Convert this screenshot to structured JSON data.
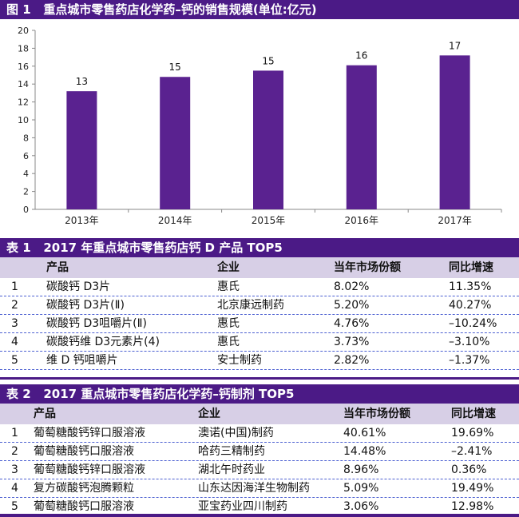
{
  "figure": {
    "band_label": "图 1",
    "band_title": "重点城市零售药店化学药–钙的销售规模(单位:亿元)"
  },
  "chart_data": {
    "type": "bar",
    "categories": [
      "2013年",
      "2014年",
      "2015年",
      "2016年",
      "2017年"
    ],
    "values": [
      13.2,
      14.8,
      15.5,
      16.1,
      17.2
    ],
    "data_labels": [
      "13",
      "15",
      "15",
      "16",
      "17"
    ],
    "yticks": [
      "0",
      "2",
      "4",
      "6",
      "8",
      "10",
      "12",
      "14",
      "16",
      "18",
      "20"
    ],
    "ylim": [
      0,
      20
    ],
    "bar_color": "#5a2290",
    "grid": false
  },
  "table1": {
    "band_label": "表 1",
    "band_title": "2017 年重点城市零售药店钙 D 产品 TOP5",
    "headers": [
      "产品",
      "企业",
      "当年市场份额",
      "同比增速"
    ],
    "rows": [
      {
        "rank": "1",
        "product": "碳酸钙 D3片",
        "company": "惠氏",
        "share": "8.02%",
        "growth": "11.35%"
      },
      {
        "rank": "2",
        "product": "碳酸钙 D3片(Ⅱ)",
        "company": "北京康远制药",
        "share": "5.20%",
        "growth": "40.27%"
      },
      {
        "rank": "3",
        "product": "碳酸钙 D3咀嚼片(Ⅱ)",
        "company": "惠氏",
        "share": "4.76%",
        "growth": "–10.24%"
      },
      {
        "rank": "4",
        "product": "碳酸钙维 D3元素片(4)",
        "company": "惠氏",
        "share": "3.73%",
        "growth": "–3.10%"
      },
      {
        "rank": "5",
        "product": "维 D 钙咀嚼片",
        "company": "安士制药",
        "share": "2.82%",
        "growth": "–1.37%"
      }
    ]
  },
  "table2": {
    "band_label": "表 2",
    "band_title": "2017 重点城市零售药店化学药–钙制剂 TOP5",
    "headers": [
      "产品",
      "企业",
      "当年市场份额",
      "同比增速"
    ],
    "rows": [
      {
        "rank": "1",
        "product": "葡萄糖酸钙锌口服溶液",
        "company": "澳诺(中国)制药",
        "share": "40.61%",
        "growth": "19.69%"
      },
      {
        "rank": "2",
        "product": "葡萄糖酸钙口服溶液",
        "company": "哈药三精制药",
        "share": "14.48%",
        "growth": "–2.41%"
      },
      {
        "rank": "3",
        "product": "葡萄糖酸钙锌口服溶液",
        "company": "湖北午时药业",
        "share": "8.96%",
        "growth": "0.36%"
      },
      {
        "rank": "4",
        "product": "复方碳酸钙泡腾颗粒",
        "company": "山东达因海洋生物制药",
        "share": "5.09%",
        "growth": "19.49%"
      },
      {
        "rank": "5",
        "product": "葡萄糖酸钙口服溶液",
        "company": "亚宝药业四川制药",
        "share": "3.06%",
        "growth": "12.98%"
      }
    ]
  }
}
